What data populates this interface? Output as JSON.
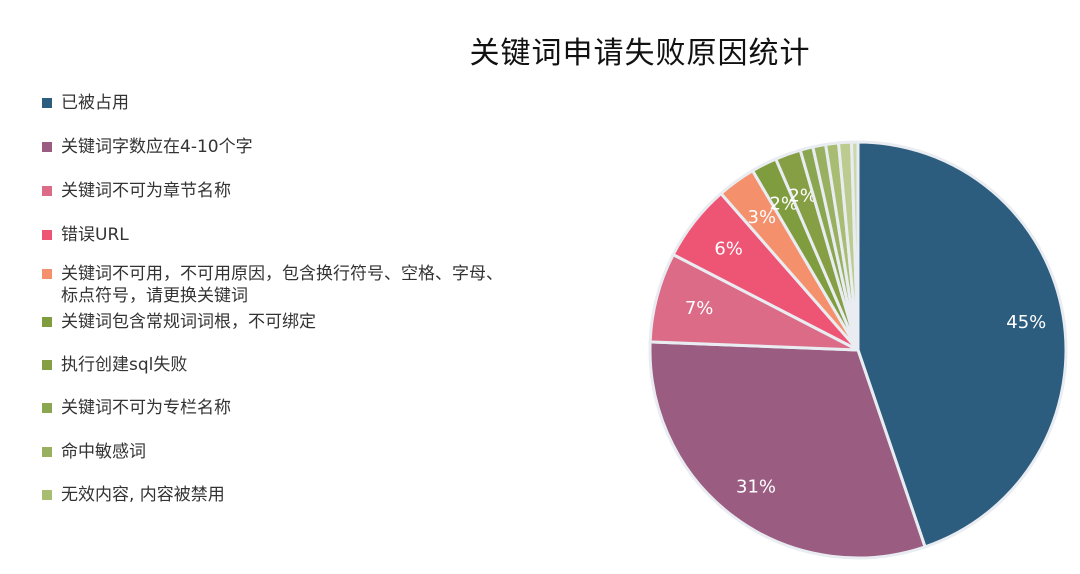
{
  "chart_data": {
    "type": "pie",
    "title": "关键词申请失败原因统计",
    "slices": [
      {
        "label": "已被占用",
        "value": 45,
        "display": "45%",
        "color": "#2d5d7e"
      },
      {
        "label": "关键词字数应在4-10个字",
        "value": 31,
        "display": "31%",
        "color": "#9a5d81"
      },
      {
        "label": "关键词不可为章节名称",
        "value": 7,
        "display": "7%",
        "color": "#db6b87"
      },
      {
        "label": "错误URL",
        "value": 6,
        "display": "6%",
        "color": "#ee5474"
      },
      {
        "label": "关键词不可用，不可用原因，包含换行符号、空格、字母、\n标点符号，请更换关键词",
        "value": 3,
        "display": "3%",
        "color": "#f4906c"
      },
      {
        "label": "关键词包含常规词词根，不可绑定",
        "value": 2,
        "display": "2%",
        "color": "#7f9c3e"
      },
      {
        "label": "执行创建sql失败",
        "value": 2,
        "display": "2%",
        "color": "#869f45"
      },
      {
        "label": "关键词不可为专栏名称",
        "value": 1,
        "display": "",
        "color": "#8ba650"
      },
      {
        "label": "命中敏感词",
        "value": 1,
        "display": "",
        "color": "#98b060"
      },
      {
        "label": "无效内容, 内容被禁用",
        "value": 1,
        "display": "",
        "color": "#a8bd72"
      },
      {
        "label": "",
        "value": 1,
        "display": "",
        "color": "#bccb8f"
      },
      {
        "label": "",
        "value": 0.5,
        "display": "",
        "color": "#cdd8aa"
      }
    ],
    "legend_position": "left"
  }
}
